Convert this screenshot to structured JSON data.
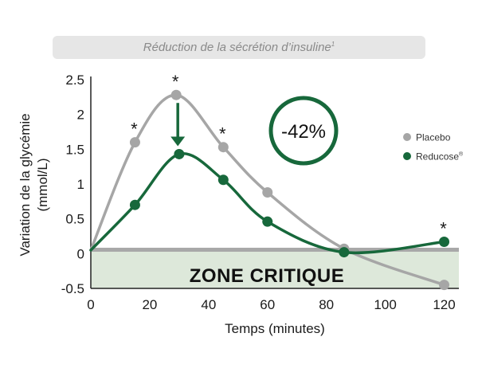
{
  "banner": {
    "text": "Réduction de la sécrétion d’insuline",
    "sup": "1"
  },
  "chart_data": {
    "type": "line",
    "xlabel": "Temps (minutes)",
    "ylabel_line1": "Variation de la glycémie",
    "ylabel_line2": "(mmol/L)",
    "xlim": [
      0,
      125
    ],
    "ylim": [
      -0.5,
      2.5
    ],
    "xticks": [
      0,
      20,
      40,
      60,
      80,
      100,
      120
    ],
    "xtick_labels": [
      "0",
      "20",
      "40",
      "60",
      "80",
      "100",
      "120"
    ],
    "yticks": [
      2.5,
      2,
      1.5,
      1,
      0.5,
      0,
      -0.5
    ],
    "ytick_labels": [
      "2.5",
      "2",
      "1.5",
      "1",
      "0.5",
      "0",
      "-0.5"
    ],
    "series": [
      {
        "name": "Placebo",
        "color": "#a6a6a6",
        "points": [
          [
            0,
            0.05
          ],
          [
            15,
            1.6
          ],
          [
            29,
            2.28
          ],
          [
            45,
            1.53
          ],
          [
            60,
            0.88
          ],
          [
            86,
            0.07
          ],
          [
            120,
            -0.45
          ]
        ]
      },
      {
        "name": "Reducose",
        "name_sup": "®",
        "color": "#17683b",
        "points": [
          [
            0,
            0.05
          ],
          [
            15,
            0.7
          ],
          [
            30,
            1.43
          ],
          [
            45,
            1.06
          ],
          [
            60,
            0.46
          ],
          [
            86,
            0.02
          ],
          [
            120,
            0.17
          ]
        ]
      }
    ],
    "significance_x": [
      15,
      29,
      45,
      120
    ],
    "zone_label": "ZONE CRITIQUE",
    "zone_range": [
      -0.5,
      0.05
    ],
    "annotation": "-42%",
    "legend_position": "right"
  }
}
